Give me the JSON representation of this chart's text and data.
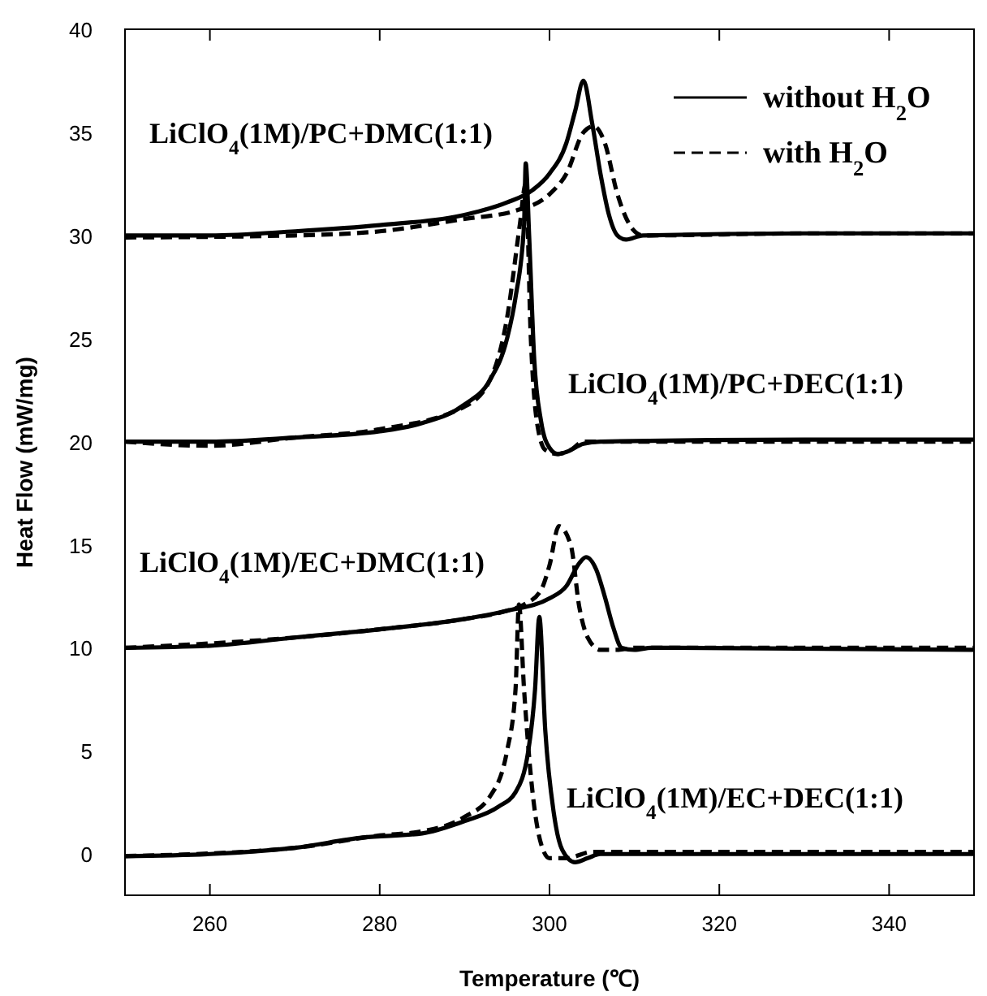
{
  "chart_data": {
    "type": "line",
    "xlabel": "Temperature (℃)",
    "ylabel": "Heat Flow (mW/mg)",
    "xlim": [
      250,
      350
    ],
    "xticks": [
      260,
      280,
      300,
      320,
      340
    ],
    "ylim": [
      -2,
      40
    ],
    "yticks": [
      0,
      5,
      10,
      15,
      20,
      25,
      30,
      35,
      40
    ],
    "legend": "top right",
    "marker": "none",
    "annotations": [
      "LiClO$_{4}$(1M)/PC+DMC(1:1)",
      "LiClO$_{4}$(1M)/PC+DEC(1:1)",
      "LiClO$_{4}$(1M)/EC+DMC(1:1)",
      "LiClO$_{4}$(1M)/EC+DEC(1:1)"
    ],
    "series": [
      {
        "name": "without H$_{2}$O",
        "color": "#000000",
        "line_style": "solid",
        "x": [
          250,
          260,
          270,
          280,
          290,
          295,
          298,
          300,
          302,
          303,
          304,
          305,
          306,
          307,
          308,
          309,
          311,
          330,
          350
        ],
        "values": [
          30,
          30,
          30.2,
          30.5,
          31,
          31.6,
          32.2,
          33,
          34.5,
          36,
          37.5,
          35.5,
          33,
          31,
          30,
          29.8,
          30,
          30.1,
          30.1
        ]
      },
      {
        "name": "with H$_{2}$O",
        "color": "#000000",
        "line_style": "dashed",
        "x": [
          250,
          270,
          280,
          290,
          296,
          300,
          302,
          304,
          305.2,
          306.5,
          308,
          309.8,
          311,
          330,
          350
        ],
        "values": [
          29.9,
          30,
          30.2,
          30.8,
          31.2,
          32,
          33,
          35,
          35.3,
          34.5,
          32,
          30.3,
          30,
          30.1,
          30.1
        ]
      },
      {
        "color": "#000000",
        "line_style": "solid",
        "x": [
          250,
          260,
          270,
          280,
          285,
          290,
          293,
          295,
          296,
          297,
          297.2,
          297.6,
          298.2,
          299,
          300,
          301,
          302,
          304,
          306,
          330,
          350
        ],
        "values": [
          20,
          20,
          20.2,
          20.5,
          20.9,
          21.8,
          23,
          25,
          27,
          30.5,
          33.5,
          30,
          24,
          21,
          19.7,
          19.4,
          19.5,
          19.9,
          20,
          20.1,
          20.1
        ]
      },
      {
        "color": "#000000",
        "line_style": "dashed",
        "x": [
          250,
          260,
          270,
          280,
          290,
          293,
          295,
          296.5,
          297.2,
          297.8,
          298.5,
          299.5,
          301,
          302.5,
          304,
          330,
          350
        ],
        "values": [
          20,
          19.8,
          20.2,
          20.6,
          21.7,
          23,
          26,
          30.5,
          32.5,
          25,
          21,
          19.6,
          19.4,
          19.6,
          20,
          20,
          20
        ]
      },
      {
        "color": "#000000",
        "line_style": "solid",
        "x": [
          250,
          260,
          270,
          280,
          290,
          295,
          300,
          302,
          303.5,
          304.3,
          305.5,
          306.5,
          307.5,
          308.5,
          310,
          312,
          350
        ],
        "values": [
          10,
          10.1,
          10.5,
          10.9,
          11.4,
          11.8,
          12.4,
          13,
          14.1,
          14.4,
          13.8,
          12.5,
          11,
          10,
          9.9,
          10,
          9.9
        ]
      },
      {
        "color": "#000000",
        "line_style": "dashed",
        "x": [
          250,
          270,
          280,
          290,
          295,
          297,
          299,
          300,
          301.1,
          302.5,
          303.5,
          304.5,
          306,
          308,
          310,
          350
        ],
        "values": [
          10,
          10.5,
          10.9,
          11.4,
          11.8,
          12.1,
          12.8,
          14,
          15.9,
          15,
          12,
          10.5,
          9.9,
          9.9,
          10,
          10
        ]
      },
      {
        "color": "#000000",
        "line_style": "solid",
        "x": [
          250,
          260,
          270,
          278,
          285,
          290,
          294,
          296,
          297.5,
          298.3,
          298.8,
          299.5,
          300.5,
          301.5,
          303,
          304.5,
          306,
          350
        ],
        "values": [
          -0.1,
          0,
          0.3,
          0.8,
          1,
          1.6,
          2.3,
          3,
          5,
          8,
          11.5,
          6,
          2,
          0.2,
          -0.4,
          -0.2,
          0,
          0
        ]
      },
      {
        "color": "#000000",
        "line_style": "dashed",
        "x": [
          250,
          270,
          280,
          285,
          290,
          293,
          295,
          296,
          296.4,
          297,
          298,
          299,
          300,
          302,
          305,
          350
        ],
        "values": [
          -0.1,
          0.3,
          0.9,
          1.1,
          1.8,
          2.8,
          5,
          8,
          12.1,
          8,
          3,
          0.5,
          -0.2,
          -0.2,
          0.1,
          0.1
        ]
      }
    ]
  }
}
